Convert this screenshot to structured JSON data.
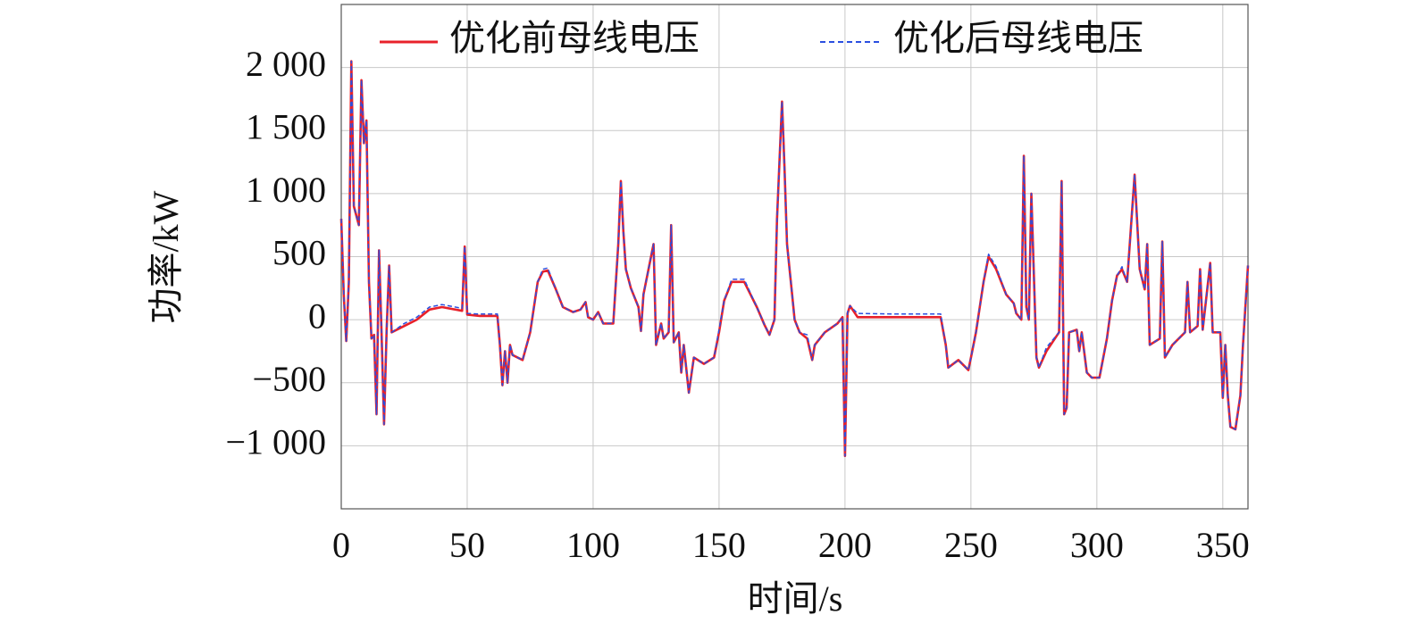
{
  "chart_data": {
    "type": "line",
    "x_label": "时间/s",
    "y_label": "功率/kW",
    "xlim": [
      0,
      360
    ],
    "ylim": [
      -1500,
      2500
    ],
    "xticks": [
      0,
      50,
      100,
      150,
      200,
      250,
      300,
      350
    ],
    "yticks": [
      {
        "value": -1000,
        "label": "−1 000"
      },
      {
        "value": -500,
        "label": "−500"
      },
      0,
      500,
      {
        "value": 1000,
        "label": "1 000"
      },
      {
        "value": 1500,
        "label": "1 500"
      },
      {
        "value": 2000,
        "label": "2 000"
      }
    ],
    "grid": true,
    "legend": "top",
    "x": [
      0,
      1,
      2,
      3,
      4,
      5,
      7,
      8,
      9,
      10,
      11,
      12,
      13,
      14,
      15,
      16,
      17,
      18,
      19,
      20,
      25,
      30,
      35,
      40,
      48,
      49,
      50,
      55,
      62,
      63,
      64,
      65,
      66,
      67,
      68,
      72,
      75,
      78,
      80,
      82,
      85,
      88,
      92,
      95,
      97,
      98,
      100,
      102,
      104,
      108,
      110,
      111,
      112,
      113,
      115,
      118,
      119,
      120,
      124,
      125,
      127,
      128,
      130,
      131,
      132,
      134,
      135,
      136,
      138,
      140,
      144,
      148,
      150,
      152,
      155,
      160,
      165,
      168,
      170,
      172,
      173,
      175,
      176,
      177,
      179,
      180,
      182,
      185,
      187,
      188,
      192,
      197,
      199,
      200,
      201,
      202,
      205,
      220,
      238,
      240,
      241,
      245,
      249,
      250,
      252,
      255,
      257,
      260,
      264,
      267,
      268,
      270,
      271,
      272,
      273,
      274,
      276,
      277,
      280,
      285,
      286,
      287,
      288,
      289,
      292,
      293,
      294,
      296,
      298,
      301,
      304,
      306,
      308,
      310,
      312,
      315,
      317,
      319,
      320,
      321,
      325,
      326,
      327,
      330,
      335,
      336,
      337,
      340,
      341,
      342,
      345,
      346,
      349,
      350,
      351,
      352,
      353,
      355,
      357,
      358,
      360
    ],
    "series": [
      {
        "name": "优化前母线电压",
        "color": "#e8212a",
        "style": "solid",
        "values": [
          800,
          200,
          -170,
          300,
          2050,
          900,
          750,
          1900,
          1400,
          1580,
          300,
          -150,
          -120,
          -750,
          550,
          -100,
          -830,
          -80,
          430,
          -100,
          -50,
          0,
          80,
          100,
          70,
          580,
          40,
          30,
          30,
          -200,
          -520,
          -250,
          -500,
          -200,
          -280,
          -320,
          -100,
          300,
          380,
          390,
          250,
          100,
          60,
          80,
          140,
          20,
          0,
          60,
          -30,
          -30,
          600,
          1100,
          700,
          400,
          250,
          100,
          -90,
          200,
          600,
          -200,
          -30,
          -150,
          -100,
          750,
          -180,
          -100,
          -420,
          -200,
          -580,
          -300,
          -350,
          -300,
          -100,
          150,
          300,
          300,
          100,
          -40,
          -120,
          0,
          800,
          1730,
          1200,
          600,
          200,
          0,
          -100,
          -150,
          -320,
          -200,
          -100,
          -30,
          20,
          -1080,
          50,
          110,
          20,
          20,
          20,
          -200,
          -380,
          -320,
          -400,
          -300,
          -100,
          300,
          500,
          400,
          200,
          130,
          50,
          0,
          1300,
          100,
          0,
          1000,
          -300,
          -380,
          -250,
          -100,
          1100,
          -750,
          -700,
          -100,
          -80,
          -250,
          -100,
          -420,
          -460,
          -460,
          -150,
          150,
          350,
          400,
          300,
          1150,
          400,
          240,
          600,
          -200,
          -150,
          620,
          -300,
          -200,
          -100,
          300,
          -100,
          -50,
          400,
          -80,
          450,
          -100,
          -100,
          -620,
          -200,
          -600,
          -850,
          -870,
          -600,
          -200,
          430
        ]
      },
      {
        "name": "优化后母线电压",
        "color": "#2a4fe0",
        "style": "dashed",
        "values": [
          800,
          200,
          -170,
          300,
          2050,
          900,
          750,
          1900,
          1400,
          1580,
          300,
          -150,
          -120,
          -750,
          550,
          -100,
          -830,
          -80,
          430,
          -100,
          -30,
          20,
          100,
          120,
          90,
          580,
          50,
          45,
          45,
          -200,
          -520,
          -250,
          -500,
          -200,
          -280,
          -320,
          -100,
          300,
          400,
          410,
          250,
          100,
          60,
          80,
          140,
          20,
          0,
          60,
          -30,
          -30,
          600,
          1100,
          700,
          400,
          250,
          100,
          -90,
          200,
          600,
          -200,
          -30,
          -150,
          -100,
          750,
          -180,
          -100,
          -420,
          -200,
          -580,
          -300,
          -350,
          -300,
          -80,
          150,
          320,
          320,
          100,
          -40,
          -120,
          0,
          800,
          1730,
          1200,
          600,
          200,
          0,
          -100,
          -120,
          -320,
          -200,
          -100,
          -30,
          20,
          -1080,
          60,
          110,
          50,
          45,
          45,
          -200,
          -380,
          -320,
          -400,
          -300,
          -100,
          300,
          520,
          420,
          200,
          130,
          50,
          0,
          1300,
          100,
          0,
          1000,
          -300,
          -380,
          -220,
          -100,
          1100,
          -750,
          -700,
          -100,
          -80,
          -250,
          -100,
          -420,
          -460,
          -460,
          -150,
          150,
          350,
          420,
          300,
          1150,
          400,
          240,
          600,
          -200,
          -150,
          620,
          -300,
          -200,
          -100,
          300,
          -100,
          -50,
          400,
          -80,
          450,
          -100,
          -100,
          -620,
          -200,
          -600,
          -850,
          -870,
          -600,
          -200,
          430
        ]
      }
    ]
  }
}
